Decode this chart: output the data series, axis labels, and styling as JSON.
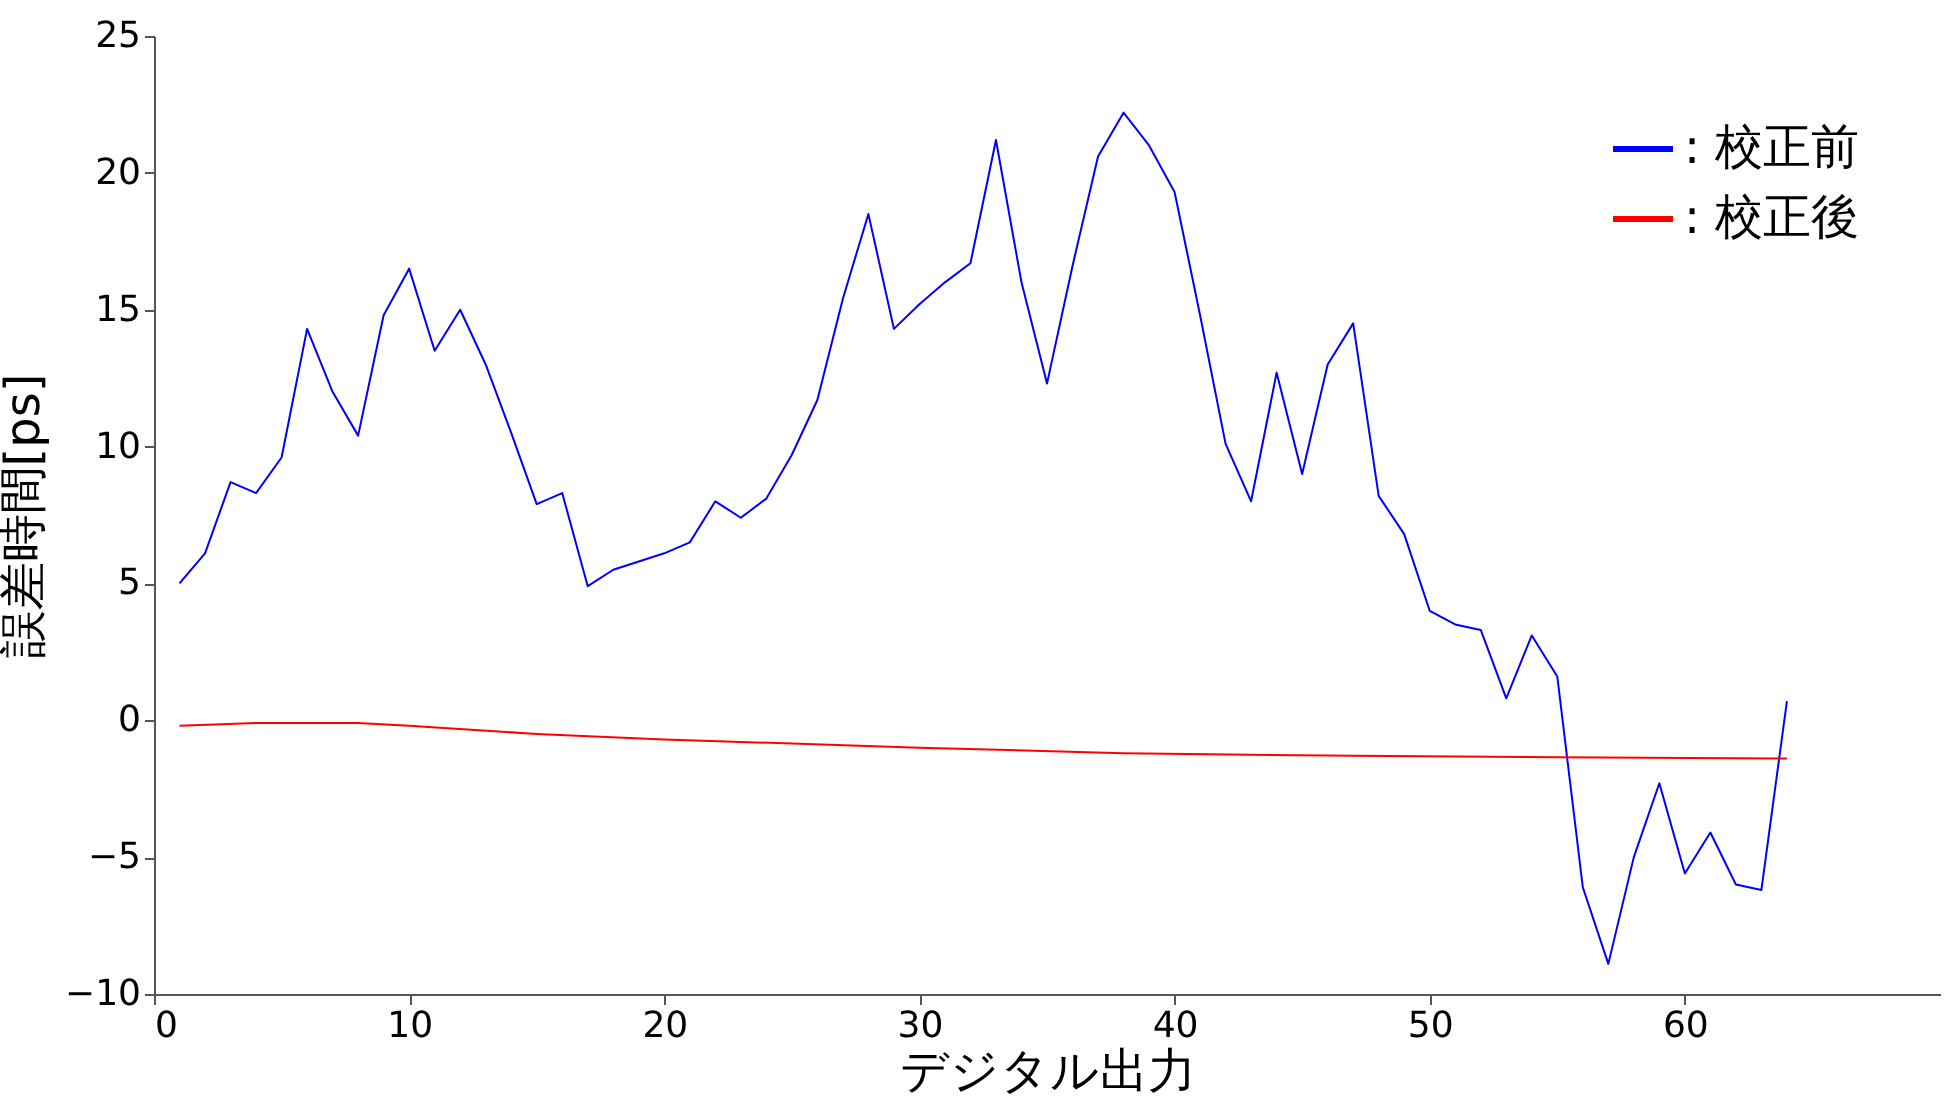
{
  "chart_data": {
    "type": "line",
    "xlabel": "デジタル出力",
    "ylabel": "誤差時間[ps]",
    "xlim": [
      0,
      70
    ],
    "xticks": [
      0,
      10,
      20,
      30,
      40,
      50,
      60
    ],
    "ylim": [
      -10,
      25
    ],
    "yticks": [
      -10,
      -5,
      0,
      5,
      10,
      15,
      20,
      25
    ],
    "grid": false,
    "legend": "top right",
    "marker": "none",
    "line_style": "solid",
    "series": [
      {
        "name": ": 校正前",
        "color": "#0000ff",
        "x": [
          1,
          2,
          3,
          4,
          5,
          6,
          7,
          8,
          9,
          10,
          11,
          12,
          13,
          14,
          15,
          16,
          17,
          18,
          19,
          20,
          21,
          22,
          23,
          24,
          25,
          26,
          27,
          28,
          29,
          30,
          31,
          32,
          33,
          34,
          35,
          36,
          37,
          38,
          39,
          40,
          41,
          42,
          43,
          44,
          45,
          46,
          47,
          48,
          49,
          50,
          51,
          52,
          53,
          54,
          55,
          56,
          57,
          58,
          59,
          60,
          61,
          62,
          63,
          64
        ],
        "values": [
          5.0,
          6.1,
          8.7,
          8.3,
          9.6,
          14.3,
          12.0,
          10.4,
          14.8,
          16.5,
          13.5,
          15.0,
          13.0,
          10.5,
          7.9,
          8.3,
          4.9,
          5.5,
          5.8,
          6.1,
          6.5,
          8.0,
          7.4,
          8.1,
          9.7,
          11.7,
          15.4,
          18.5,
          14.3,
          15.2,
          16.0,
          16.7,
          21.2,
          16.0,
          12.3,
          16.6,
          20.6,
          22.2,
          21.0,
          19.3,
          14.8,
          10.1,
          8.0,
          12.7,
          9.0,
          13.0,
          14.5,
          8.2,
          6.8,
          4.0,
          3.5,
          3.3,
          0.8,
          3.1,
          1.6,
          -6.1,
          -8.9,
          -5.0,
          -2.3,
          -5.6,
          -4.1,
          -6.0,
          -6.2,
          0.7
        ]
      },
      {
        "name": ": 校正後",
        "color": "#ff0000",
        "x": [
          1,
          4,
          8,
          10,
          15,
          20,
          30,
          38,
          47,
          55,
          64
        ],
        "values": [
          -0.2,
          -0.1,
          -0.1,
          -0.2,
          -0.5,
          -0.7,
          -1.0,
          -1.2,
          -1.3,
          -1.35,
          -1.4
        ]
      }
    ]
  }
}
